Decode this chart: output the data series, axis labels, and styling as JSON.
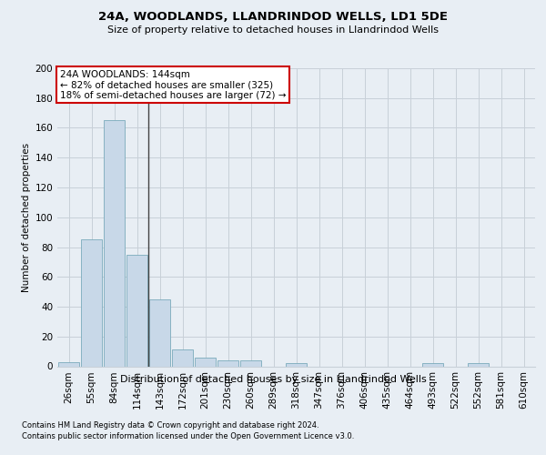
{
  "title1": "24A, WOODLANDS, LLANDRINDOD WELLS, LD1 5DE",
  "title2": "Size of property relative to detached houses in Llandrindod Wells",
  "xlabel": "Distribution of detached houses by size in Llandrindod Wells",
  "ylabel": "Number of detached properties",
  "footnote1": "Contains HM Land Registry data © Crown copyright and database right 2024.",
  "footnote2": "Contains public sector information licensed under the Open Government Licence v3.0.",
  "annotation_line1": "24A WOODLANDS: 144sqm",
  "annotation_line2": "← 82% of detached houses are smaller (325)",
  "annotation_line3": "18% of semi-detached houses are larger (72) →",
  "bar_labels": [
    "26sqm",
    "55sqm",
    "84sqm",
    "114sqm",
    "143sqm",
    "172sqm",
    "201sqm",
    "230sqm",
    "260sqm",
    "289sqm",
    "318sqm",
    "347sqm",
    "376sqm",
    "406sqm",
    "435sqm",
    "464sqm",
    "493sqm",
    "522sqm",
    "552sqm",
    "581sqm",
    "610sqm"
  ],
  "bar_values": [
    3,
    85,
    165,
    75,
    45,
    11,
    6,
    4,
    4,
    0,
    2,
    0,
    0,
    0,
    0,
    0,
    2,
    0,
    2,
    0,
    0
  ],
  "bar_color": "#c8d8e8",
  "bar_edge_color": "#7aaabb",
  "vline_color": "#444444",
  "vline_x": 3.5,
  "ylim": [
    0,
    200
  ],
  "yticks": [
    0,
    20,
    40,
    60,
    80,
    100,
    120,
    140,
    160,
    180,
    200
  ],
  "grid_color": "#c8d0d8",
  "bg_color": "#e8eef4",
  "plot_bg_color": "#e8eef4",
  "annotation_box_edgecolor": "#cc0000",
  "annotation_box_facecolor": "#ffffff",
  "title1_fontsize": 9.5,
  "title2_fontsize": 8.0,
  "ylabel_fontsize": 7.5,
  "xlabel_fontsize": 8.0,
  "tick_fontsize": 7.5,
  "annotation_fontsize": 7.5,
  "footnote_fontsize": 6.0
}
